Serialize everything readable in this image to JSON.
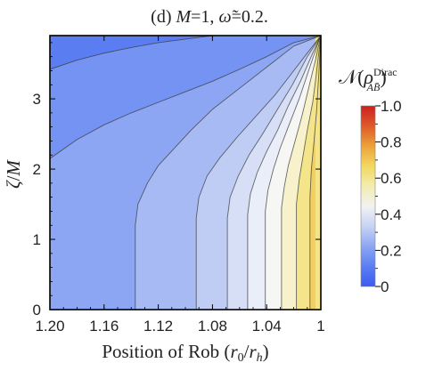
{
  "chart_data": {
    "type": "contour",
    "title_parts": [
      "(d) ",
      "M",
      "=1, ",
      "ω̃",
      "=0.2."
    ],
    "xlabel": "Position of Rob (r0/rh)",
    "xlabel_parts": [
      "Position of Rob (",
      "r",
      "0",
      "/",
      "r",
      "h",
      ")"
    ],
    "ylabel": "ζ/M",
    "ylabel_parts": [
      "ζ",
      "/",
      "M"
    ],
    "colorbar_label": "N(ρ_AB̄^Dirac)",
    "colorbar_label_parts": [
      "𝒩(",
      "ρ",
      "Dirac",
      "A",
      "B̄",
      ")"
    ],
    "xlim": [
      1.2,
      1.0
    ],
    "ylim": [
      0,
      3.9
    ],
    "x_reversed": true,
    "x_ticks": [
      1.2,
      1.16,
      1.12,
      1.08,
      1.04,
      1
    ],
    "x_tick_labels": [
      "1.20",
      "1.16",
      "1.12",
      "1.08",
      "1.04",
      "1"
    ],
    "y_ticks": [
      0,
      1,
      2,
      3
    ],
    "y_tick_labels": [
      "0",
      "1",
      "2",
      "3"
    ],
    "colorbar_ticks": [
      0,
      0.2,
      0.4,
      0.6,
      0.8,
      1
    ],
    "colorbar_tick_labels": [
      "0",
      "0.2",
      "0.4",
      "0.6",
      "0.8",
      "1.0"
    ],
    "colorbar_range": [
      0,
      1
    ],
    "colormap": [
      "#3b5bf0",
      "#5c7ef2",
      "#8ca6f2",
      "#c7d3f5",
      "#f2f2f2",
      "#f3ecb0",
      "#f2d860",
      "#eba23a",
      "#de5a2a",
      "#cc1f1f"
    ],
    "contour_lines": [
      {
        "x": [
          1.2,
          1.18,
          1.16,
          1.14,
          1.12,
          1.1,
          1.08,
          1.0
        ],
        "y": [
          3.42,
          3.55,
          3.65,
          3.73,
          3.8,
          3.85,
          3.9,
          3.9
        ]
      },
      {
        "x": [
          1.2,
          1.18,
          1.16,
          1.14,
          1.12,
          1.1,
          1.08,
          1.06,
          1.04,
          1.02,
          1.0
        ],
        "y": [
          2.15,
          2.42,
          2.63,
          2.8,
          2.95,
          3.1,
          3.25,
          3.42,
          3.6,
          3.8,
          3.9
        ]
      },
      {
        "x": [
          1.137,
          1.137,
          1.135,
          1.128,
          1.12,
          1.108,
          1.096,
          1.08,
          1.06,
          1.04,
          1.02,
          1.0
        ],
        "y": [
          0,
          1.2,
          1.5,
          1.8,
          2.05,
          2.3,
          2.55,
          2.85,
          3.15,
          3.45,
          3.75,
          3.9
        ]
      },
      {
        "x": [
          1.092,
          1.092,
          1.09,
          1.084,
          1.075,
          1.062,
          1.048,
          1.034,
          1.02,
          1.01,
          1.0
        ],
        "y": [
          0,
          1.3,
          1.6,
          1.9,
          2.15,
          2.45,
          2.75,
          3.05,
          3.4,
          3.65,
          3.9
        ]
      },
      {
        "x": [
          1.069,
          1.069,
          1.067,
          1.061,
          1.053,
          1.043,
          1.032,
          1.021,
          1.01,
          1.0
        ],
        "y": [
          0,
          1.3,
          1.6,
          1.9,
          2.2,
          2.5,
          2.85,
          3.2,
          3.6,
          3.9
        ]
      },
      {
        "x": [
          1.054,
          1.054,
          1.052,
          1.047,
          1.04,
          1.032,
          1.024,
          1.015,
          1.006,
          1.0
        ],
        "y": [
          0,
          1.35,
          1.65,
          1.95,
          2.25,
          2.55,
          2.9,
          3.25,
          3.65,
          3.9
        ]
      },
      {
        "x": [
          1.041,
          1.041,
          1.039,
          1.035,
          1.03,
          1.023,
          1.016,
          1.009,
          1.002,
          1.0
        ],
        "y": [
          0,
          1.4,
          1.7,
          2.0,
          2.3,
          2.65,
          3.0,
          3.4,
          3.8,
          3.9
        ]
      },
      {
        "x": [
          1.029,
          1.029,
          1.027,
          1.024,
          1.019,
          1.014,
          1.009,
          1.004,
          1.0
        ],
        "y": [
          0,
          1.45,
          1.75,
          2.05,
          2.4,
          2.75,
          3.15,
          3.55,
          3.9
        ]
      },
      {
        "x": [
          1.018,
          1.018,
          1.016,
          1.013,
          1.01,
          1.006,
          1.003,
          1.0
        ],
        "y": [
          0,
          1.5,
          1.85,
          2.2,
          2.55,
          2.95,
          3.4,
          3.9
        ]
      },
      {
        "x": [
          1.008,
          1.008,
          1.007,
          1.005,
          1.003,
          1.0015,
          1.0
        ],
        "y": [
          0,
          1.6,
          2.0,
          2.4,
          2.85,
          3.35,
          3.9
        ]
      }
    ],
    "band_colors": [
      "#5a7ef2",
      "#7493f2",
      "#8da6f3",
      "#a7baf4",
      "#bfcdf5",
      "#d6dff6",
      "#e9eef8",
      "#f6f7f5",
      "#f7f2cc",
      "#f4e48a",
      "#f2d060"
    ]
  }
}
